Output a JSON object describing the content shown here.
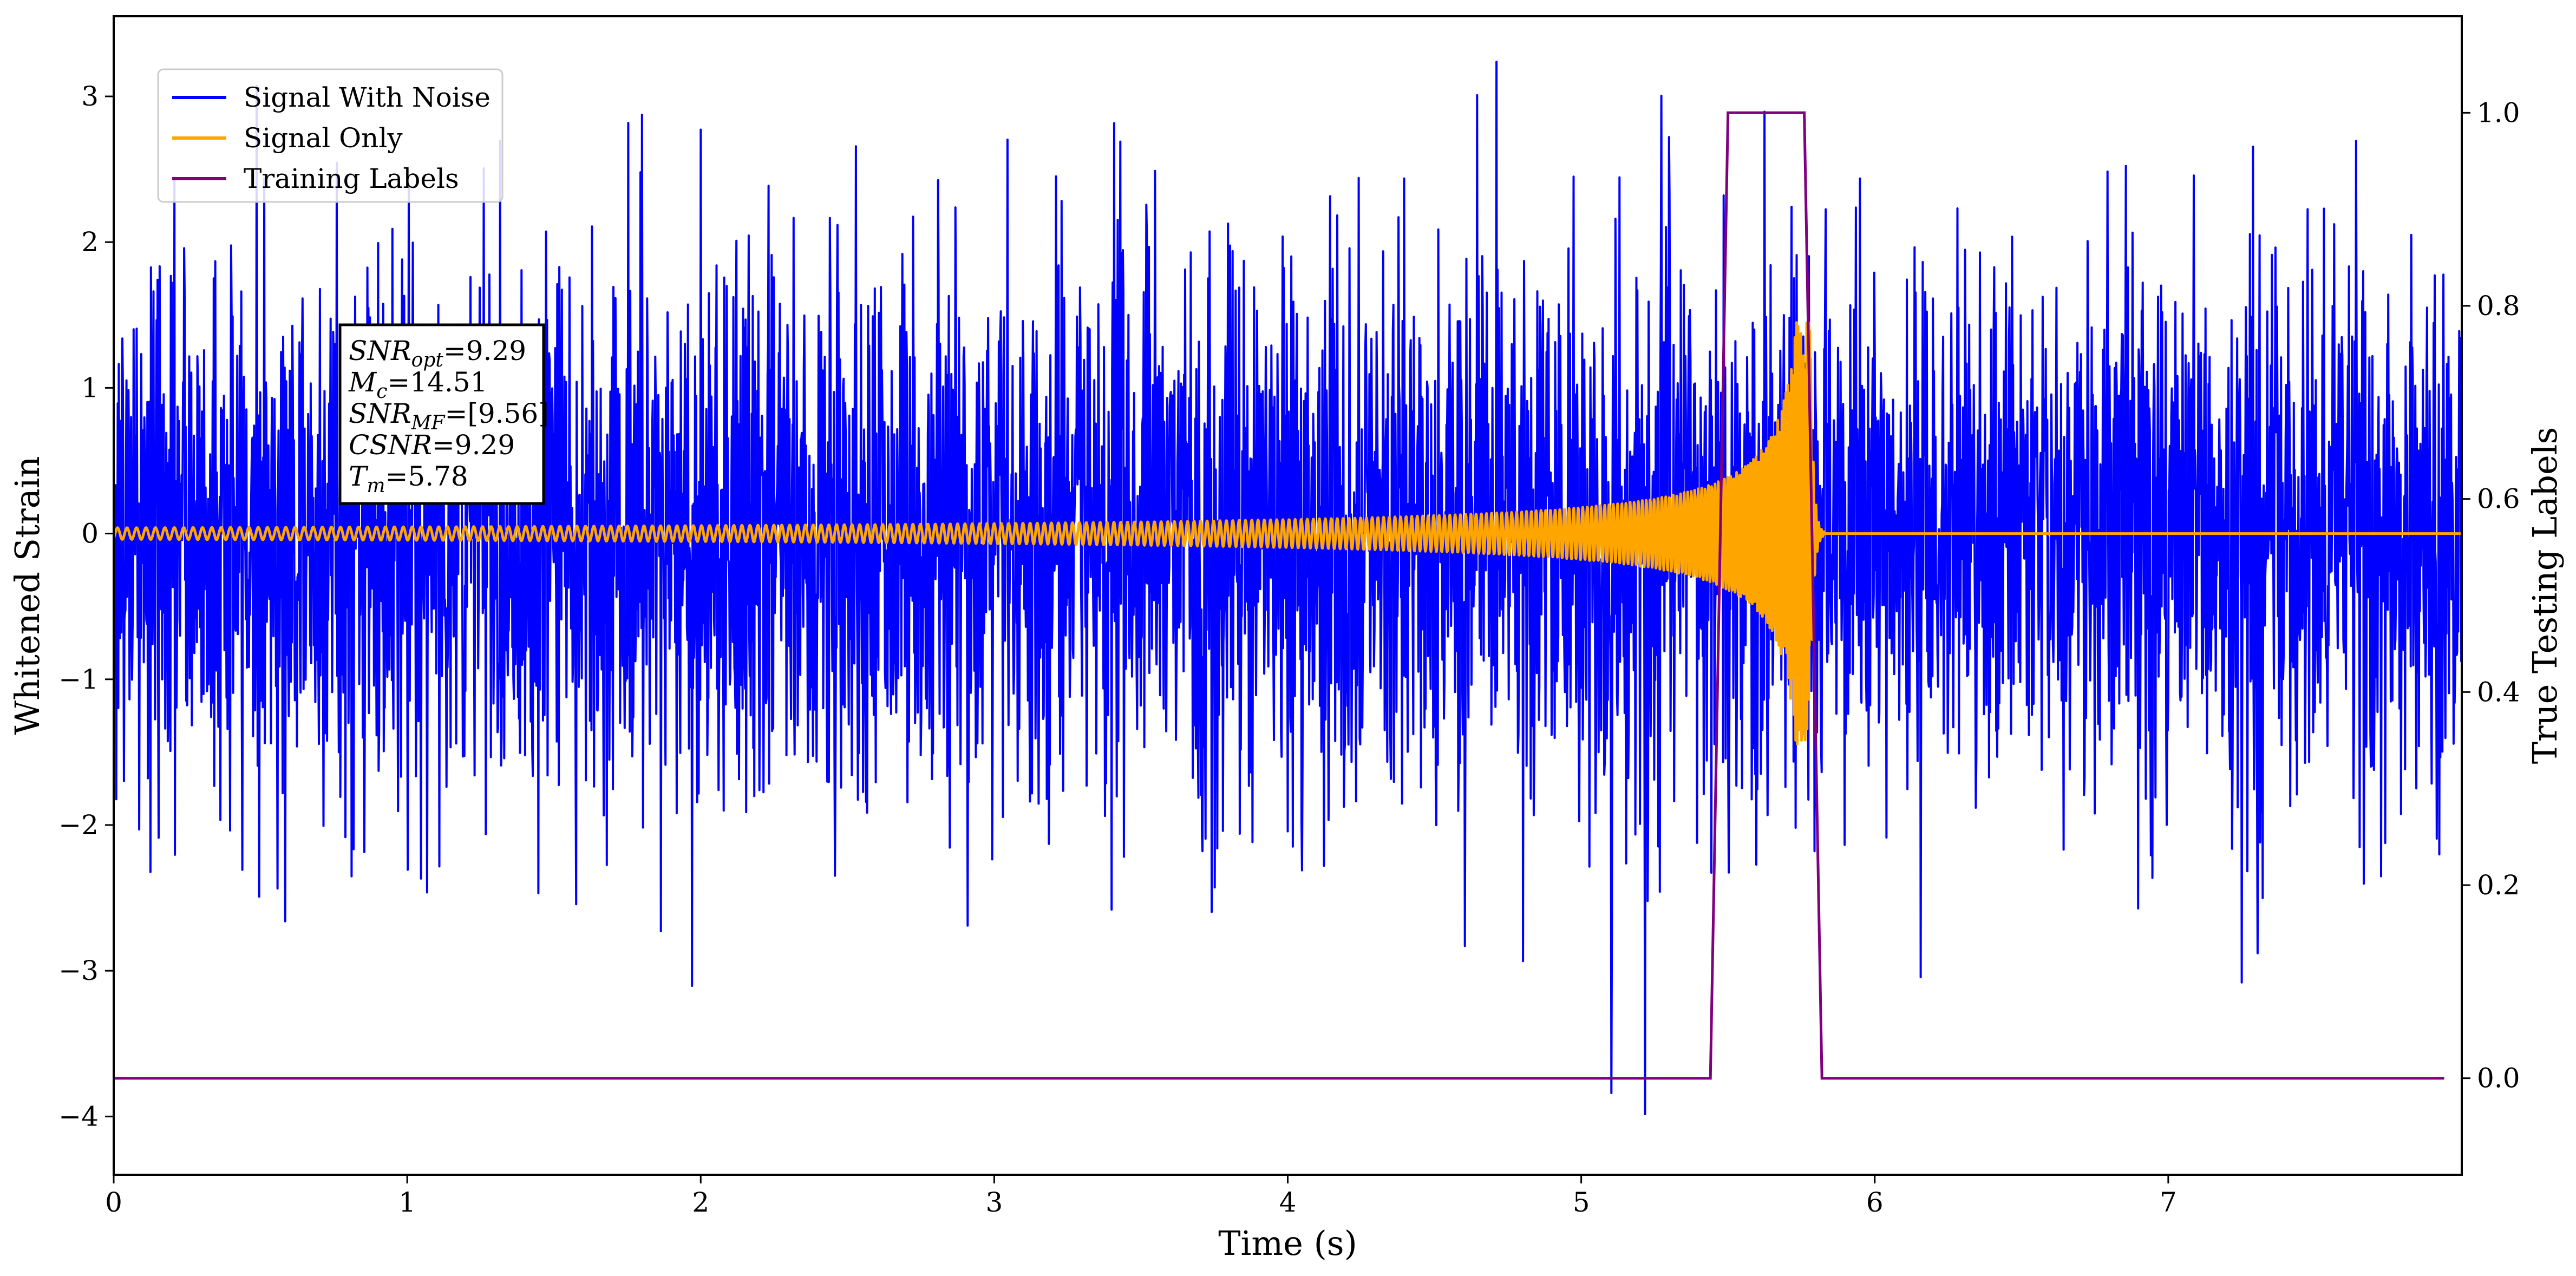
{
  "chart_data": {
    "type": "line",
    "xlabel": "Time (s)",
    "ylabel": "Whitened Strain",
    "y2label": "True Testing Labels",
    "xlim": [
      0,
      8.0
    ],
    "ylim": [
      -4.4,
      3.55
    ],
    "y2lim": [
      -0.1,
      1.1
    ],
    "x_ticks": [
      0,
      1,
      2,
      3,
      4,
      5,
      6,
      7
    ],
    "y_ticks": [
      -4,
      -3,
      -2,
      -1,
      0,
      1,
      2,
      3
    ],
    "y2_ticks": [
      0.0,
      0.2,
      0.4,
      0.6,
      0.8,
      1.0
    ],
    "x_tick_labels": [
      "0",
      "1",
      "2",
      "3",
      "4",
      "5",
      "6",
      "7"
    ],
    "y_tick_labels": [
      "−4",
      "−3",
      "−2",
      "−1",
      "0",
      "1",
      "2",
      "3"
    ],
    "y2_tick_labels": [
      "0.0",
      "0.2",
      "0.4",
      "0.6",
      "0.8",
      "1.0"
    ],
    "grid": false,
    "legend_position": "top-left",
    "series": [
      {
        "name": "Signal With Noise",
        "color": "#0000ff",
        "axis": "left",
        "kind": "gaussian noise plus chirp",
        "noise_std": 0.95,
        "x_range": [
          0,
          8.0
        ]
      },
      {
        "name": "Signal Only",
        "color": "#ffa500",
        "axis": "left",
        "kind": "inspiral chirp",
        "x_range": [
          0,
          8.0
        ],
        "merger_time": 5.78,
        "start_amplitude": 0.04,
        "peak_amplitude": 1.45,
        "x_after": [
          5.83,
          7.99
        ],
        "y_after": 0
      },
      {
        "name": "Training Labels",
        "color": "#800080",
        "axis": "right",
        "x": [
          0.0,
          5.44,
          5.5,
          5.76,
          5.82,
          7.94
        ],
        "y": [
          0,
          0,
          1,
          1,
          0,
          0
        ]
      }
    ],
    "annotation": {
      "lines": [
        {
          "sym": "SNR",
          "sub": "opt",
          "rest": "=9.29"
        },
        {
          "sym": "M",
          "sub": "c",
          "rest": "=14.51"
        },
        {
          "sym": "SNR",
          "sub": "MF",
          "rest": "=[9.56]"
        },
        {
          "sym": "CSNR",
          "sub": "",
          "rest": "=9.29"
        },
        {
          "sym": "T",
          "sub": "m",
          "rest": "=5.78"
        }
      ]
    }
  }
}
